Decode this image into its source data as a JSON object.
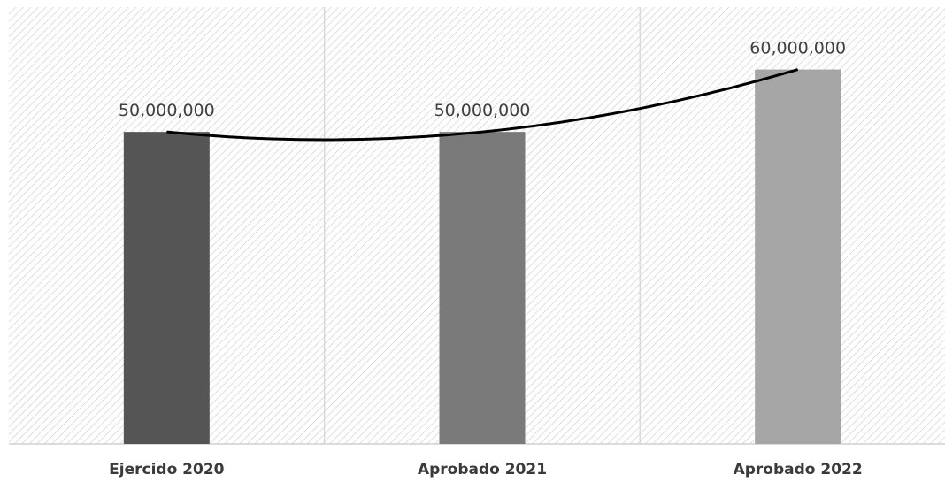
{
  "chart_data": {
    "type": "bar",
    "categories": [
      "Ejercido 2020",
      "Aprobado 2021",
      "Aprobado 2022"
    ],
    "values": [
      50000000,
      50000000,
      60000000
    ],
    "value_labels": [
      "50,000,000",
      "50,000,000",
      "60,000,000"
    ],
    "ylim": [
      0,
      70000000
    ],
    "grid": "vertical separators",
    "legend": "none",
    "trendline": "polynomial",
    "colors": {
      "bars": [
        "#555555",
        "#7a7a7a",
        "#a6a6a6"
      ],
      "trendline": "#000000",
      "hatch": "#d0d0d0",
      "divider": "#d9d9d9"
    }
  }
}
